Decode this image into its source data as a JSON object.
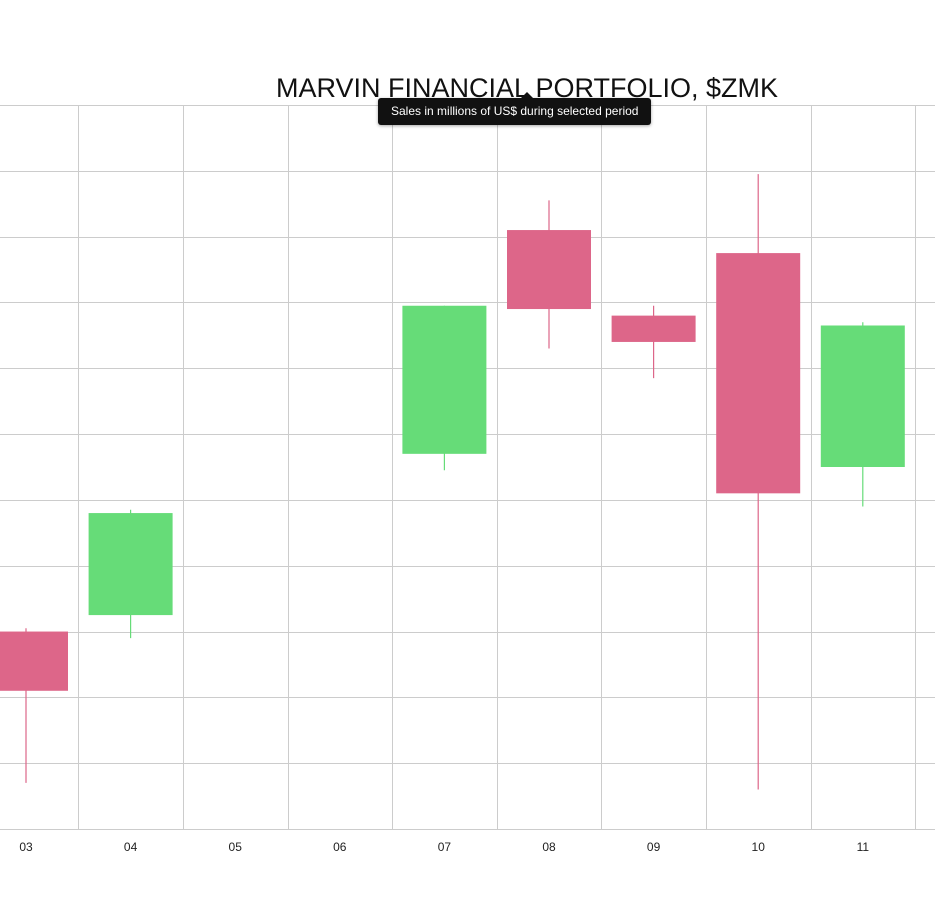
{
  "chart_data": {
    "type": "candlestick",
    "title": "MARVIN FINANCIAL PORTFOLIO, $ZMK",
    "categories": [
      "03",
      "04",
      "05",
      "06",
      "07",
      "08",
      "09",
      "10",
      "11"
    ],
    "candles": [
      {
        "x": "03",
        "open": 30.0,
        "close": 21.0,
        "high": 30.5,
        "low": 7.0
      },
      {
        "x": "04",
        "open": 32.5,
        "close": 48.0,
        "high": 48.5,
        "low": 29.0
      },
      {
        "x": "05",
        "open": null,
        "close": null,
        "high": null,
        "low": null
      },
      {
        "x": "06",
        "open": null,
        "close": null,
        "high": null,
        "low": null
      },
      {
        "x": "07",
        "open": 57.0,
        "close": 79.5,
        "high": 79.5,
        "low": 54.5
      },
      {
        "x": "08",
        "open": 91.0,
        "close": 79.0,
        "high": 95.5,
        "low": 73.0
      },
      {
        "x": "09",
        "open": 78.0,
        "close": 74.0,
        "high": 79.5,
        "low": 68.5
      },
      {
        "x": "10",
        "open": 87.5,
        "close": 51.0,
        "high": 99.5,
        "low": 6.0
      },
      {
        "x": "11",
        "open": 55.0,
        "close": 76.5,
        "high": 77.0,
        "low": 49.0
      }
    ],
    "ylim": [
      0,
      110
    ],
    "grid": true,
    "y_tick_labels_visible": false,
    "tooltip": "Sales in millions of US$ during selected period",
    "colors": {
      "up": "#66dc78",
      "down": "#dd6689",
      "grid": "#cccccc"
    }
  }
}
